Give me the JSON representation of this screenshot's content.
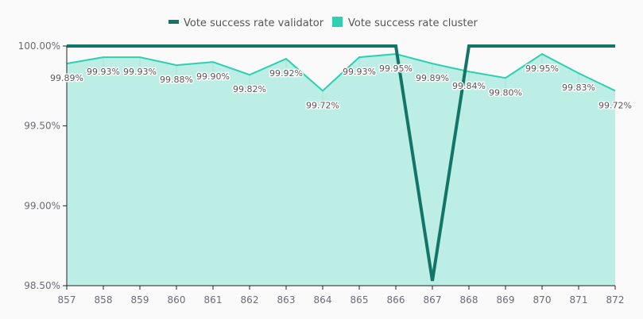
{
  "chart_data": {
    "type": "line",
    "x": [
      857,
      858,
      859,
      860,
      861,
      862,
      863,
      864,
      865,
      866,
      867,
      868,
      869,
      870,
      871,
      872
    ],
    "series": [
      {
        "name": "Vote success rate validator",
        "color": "#137565",
        "values": [
          100,
          100,
          100,
          100,
          100,
          100,
          100,
          100,
          100,
          100,
          98.53,
          100,
          100,
          100,
          100,
          100
        ]
      },
      {
        "name": "Vote success rate cluster",
        "color": "#2ecfb3",
        "fill": "#bdeee5",
        "values": [
          99.89,
          99.93,
          99.93,
          99.88,
          99.9,
          99.82,
          99.92,
          99.72,
          99.93,
          99.95,
          99.89,
          99.84,
          99.8,
          99.95,
          99.83,
          99.72
        ],
        "labels": [
          "99.89%",
          "99.93%",
          "99.93%",
          "99.88%",
          "99.90%",
          "99.82%",
          "99.92%",
          "99.72%",
          "99.93%",
          "99.95%",
          "99.89%",
          "99.84%",
          "99.80%",
          "99.95%",
          "99.83%",
          "99.72%"
        ]
      }
    ],
    "ylim": [
      98.5,
      100
    ],
    "yticks": [
      "98.50%",
      "99.00%",
      "99.50%",
      "100.00%"
    ],
    "ytick_values": [
      98.5,
      99.0,
      99.5,
      100.0
    ],
    "xticks": [
      "857",
      "858",
      "859",
      "860",
      "861",
      "862",
      "863",
      "864",
      "865",
      "866",
      "867",
      "868",
      "869",
      "870",
      "871",
      "872"
    ],
    "legend": "top-center",
    "grid": false
  }
}
